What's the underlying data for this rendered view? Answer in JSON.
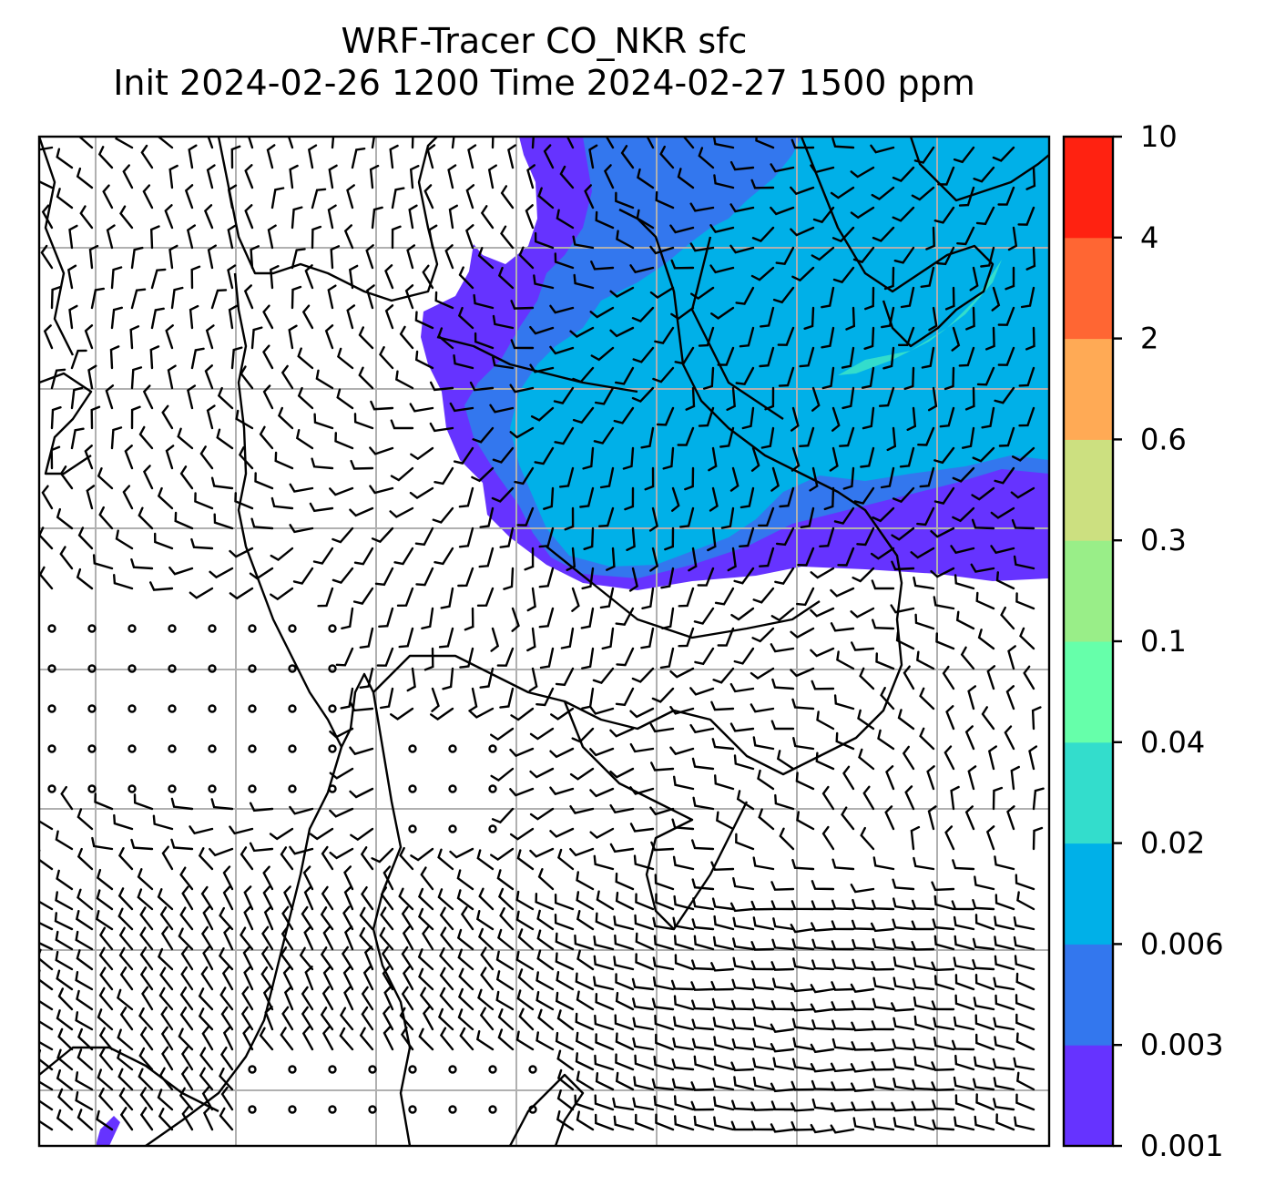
{
  "title": {
    "line1": "WRF-Tracer CO_NKR sfc",
    "line2": "Init 2024-02-26 1200 Time 2024-02-27 1500 ppm"
  },
  "colorbar": {
    "levels": [
      "0.001",
      "0.003",
      "0.006",
      "0.02",
      "0.04",
      "0.1",
      "0.3",
      "0.6",
      "2",
      "4",
      "10"
    ],
    "colors": [
      "#6633ff",
      "#3377ee",
      "#00b0e8",
      "#33ddcc",
      "#66ffaa",
      "#99ee88",
      "#cce080",
      "#ffaa55",
      "#ff6633",
      "#ff2211"
    ]
  },
  "map": {
    "gridlines": true,
    "grid_color": "#b0b0b0",
    "plume_color_low": "#6633ff",
    "plume_color_mid": "#3377ee",
    "plume_color_high": "#00b0e8",
    "plume_color_peak": "#33ddcc",
    "barb_color": "#000000"
  }
}
